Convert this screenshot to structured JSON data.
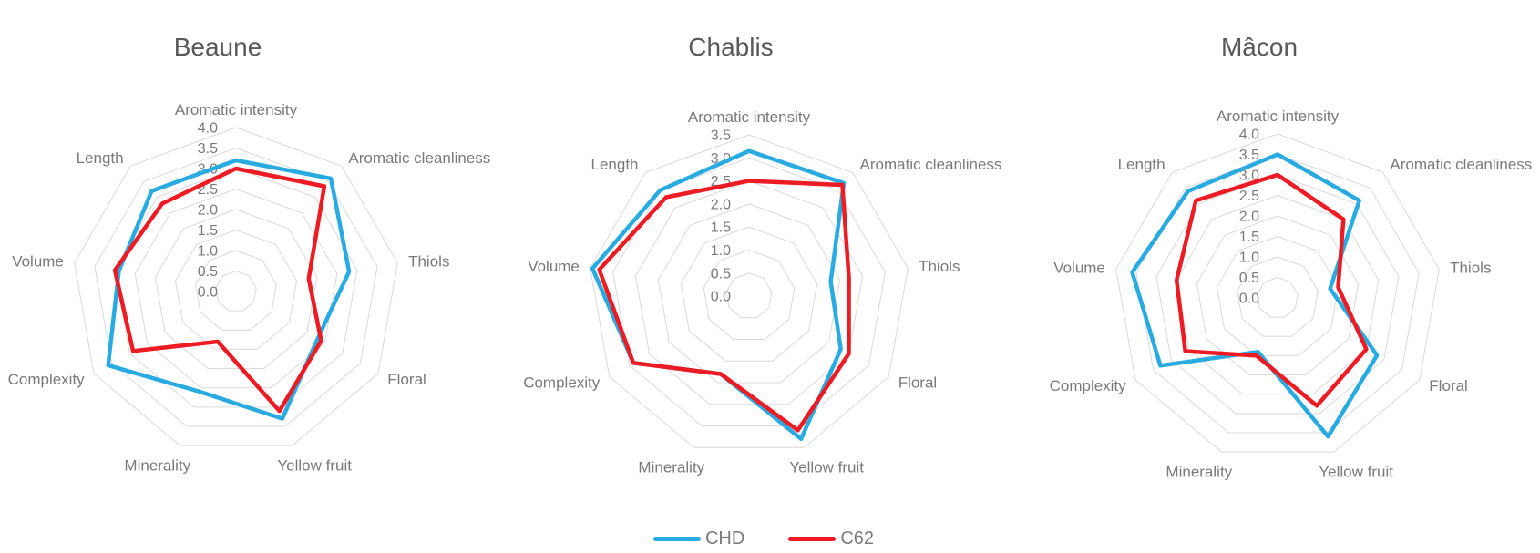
{
  "chart_data": {
    "type": "radar",
    "description": "Three radar (spider) charts comparing sensory attribute scores of two yeast/strain treatments (CHD vs C62) for three Burgundy white wines.",
    "axes": [
      "Aromatic intensity",
      "Aromatic cleanliness",
      "Thiols",
      "Floral",
      "Yellow fruit",
      "Minerality",
      "Complexity",
      "Volume",
      "Length"
    ],
    "series": [
      {
        "name": "CHD",
        "color": "#29ABE2"
      },
      {
        "name": "C62",
        "color": "#ED1C24"
      }
    ],
    "grid": true,
    "legend_position": "bottom-center",
    "charts": [
      {
        "title": "Beaune",
        "axis_min": 0.0,
        "axis_max": 4.0,
        "tick_step": 0.5,
        "values": {
          "CHD": [
            3.2,
            3.6,
            2.8,
            2.3,
            3.3,
            2.6,
            3.6,
            2.9,
            3.2
          ],
          "C62": [
            3.0,
            3.35,
            1.8,
            2.4,
            3.1,
            1.3,
            2.9,
            3.0,
            2.8
          ]
        }
      },
      {
        "title": "Chablis",
        "axis_min": 0.0,
        "axis_max": 3.5,
        "tick_step": 0.5,
        "values": {
          "CHD": [
            3.15,
            3.2,
            1.8,
            2.3,
            3.3,
            1.8,
            2.9,
            3.45,
            3.0
          ],
          "C62": [
            2.5,
            3.15,
            2.2,
            2.5,
            3.1,
            1.8,
            2.9,
            3.3,
            2.8
          ]
        }
      },
      {
        "title": "Mâcon",
        "axis_min": 0.0,
        "axis_max": 4.0,
        "tick_step": 0.5,
        "values": {
          "CHD": [
            3.5,
            3.1,
            1.3,
            2.8,
            3.6,
            1.4,
            3.3,
            3.6,
            3.4
          ],
          "C62": [
            3.0,
            2.5,
            1.5,
            2.5,
            2.8,
            1.5,
            2.6,
            2.5,
            3.1
          ]
        }
      }
    ]
  },
  "styles": {
    "grid_color": "#D9D9D9",
    "label_color": "#7A7A7A",
    "title_color": "#595959",
    "background": "#FFFFFF",
    "series_line_width": 4.5
  }
}
